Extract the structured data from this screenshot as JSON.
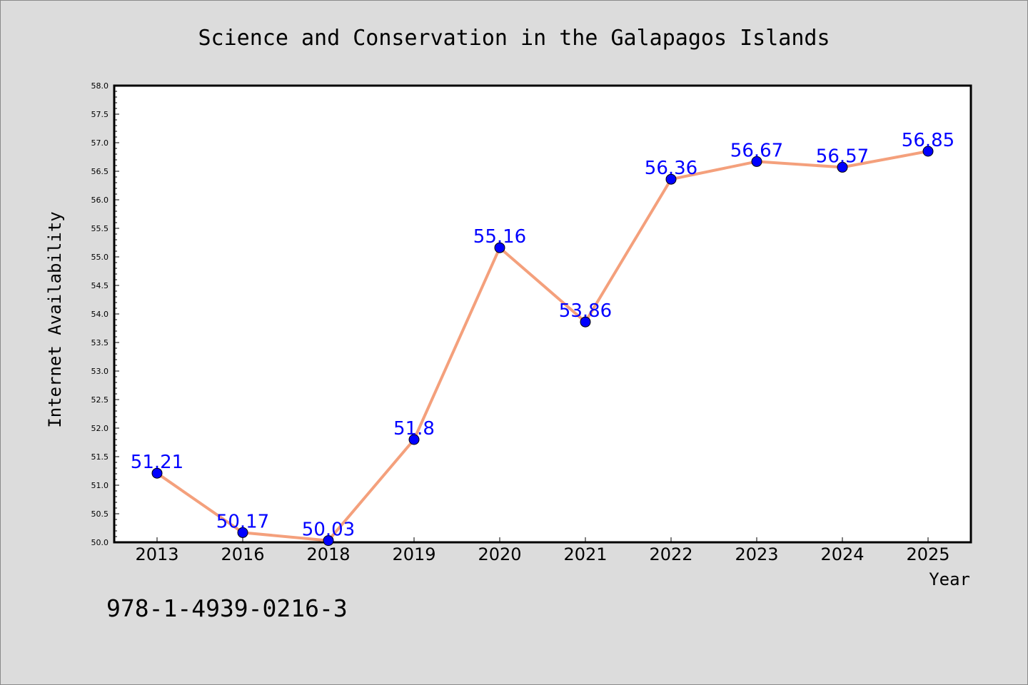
{
  "chart_data": {
    "type": "line",
    "title": "Science and Conservation in the Galapagos Islands",
    "xlabel": "Year",
    "ylabel": "Internet Availability",
    "categories": [
      "2013",
      "2016",
      "2018",
      "2019",
      "2020",
      "2021",
      "2022",
      "2023",
      "2024",
      "2025"
    ],
    "values": [
      51.21,
      50.17,
      50.03,
      51.8,
      55.16,
      53.86,
      56.36,
      56.67,
      56.57,
      56.85
    ],
    "data_labels": [
      "51.21",
      "50.17",
      "50.03",
      "51.8",
      "55.16",
      "53.86",
      "56.36",
      "56.67",
      "56.57",
      "56.85"
    ],
    "ylim": [
      50.0,
      58.0
    ],
    "yticks": [
      "50.0",
      "50.5",
      "51.0",
      "51.5",
      "52.0",
      "52.5",
      "53.0",
      "53.5",
      "54.0",
      "54.5",
      "55.0",
      "55.5",
      "56.0",
      "56.5",
      "57.0",
      "57.5",
      "58.0"
    ],
    "grid": false,
    "line_color": "#f4a07c",
    "marker_color": "#0000ff",
    "label_color": "#0000ff"
  },
  "footer": "978-1-4939-0216-3"
}
